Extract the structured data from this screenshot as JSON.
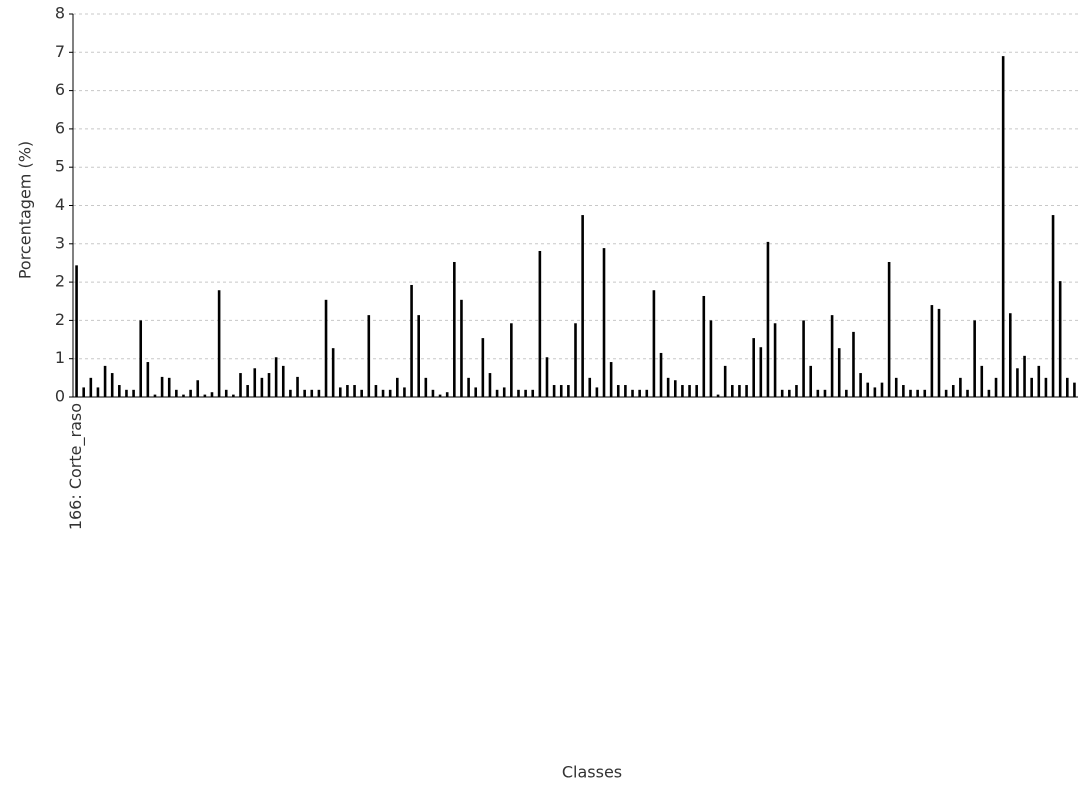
{
  "chart_data": {
    "type": "bar",
    "y_label": "Porcentagem (%)",
    "x_label": "Classes",
    "color": "#000000",
    "grid": true,
    "ylim": [
      0,
      8
    ],
    "yticks": [
      {
        "value": 0,
        "label": "0"
      },
      {
        "value": 0.8,
        "label": "1"
      },
      {
        "value": 1.6,
        "label": "2"
      },
      {
        "value": 2.4,
        "label": "2"
      },
      {
        "value": 3.2,
        "label": "3"
      },
      {
        "value": 4,
        "label": "4"
      },
      {
        "value": 4.8,
        "label": "5"
      },
      {
        "value": 5.6,
        "label": "6"
      },
      {
        "value": 6.4,
        "label": "6"
      },
      {
        "value": 7.2,
        "label": "7"
      },
      {
        "value": 8,
        "label": "8"
      }
    ],
    "categories": [
      "166: Corte_raso",
      null,
      null,
      null,
      null,
      null,
      null,
      null,
      null,
      null,
      null,
      null,
      null,
      null,
      null,
      null,
      null,
      null,
      null,
      null,
      null,
      null,
      null,
      null,
      null,
      null,
      null,
      null,
      null,
      null,
      null,
      null,
      null,
      null,
      null,
      null,
      null,
      null,
      null,
      null,
      null,
      null,
      null,
      null,
      null,
      null,
      null,
      null,
      null,
      null,
      null,
      null,
      null,
      null,
      null,
      null,
      null,
      null,
      null,
      null,
      null,
      null,
      null,
      null,
      null,
      null,
      null,
      null,
      null,
      null,
      null,
      null,
      null,
      null,
      null,
      null,
      null,
      null,
      null,
      null,
      null,
      null,
      null,
      null,
      null,
      null,
      null,
      null,
      null,
      null,
      null,
      null,
      null,
      null,
      null,
      null,
      null,
      null,
      null,
      null,
      null,
      null,
      null,
      null,
      null,
      null,
      null,
      null,
      null,
      null,
      null,
      null,
      null,
      null,
      null,
      null,
      null,
      null,
      null,
      null,
      null,
      null,
      null,
      null,
      null,
      null,
      null,
      null,
      null,
      null,
      null,
      null,
      null,
      null,
      null,
      null,
      null,
      null,
      null,
      null,
      null
    ],
    "values": [
      2.75,
      0.2,
      0.4,
      0.2,
      0.65,
      0.5,
      0.25,
      0.15,
      0.15,
      1.6,
      0.73,
      0.05,
      0.42,
      0.4,
      0.15,
      0.05,
      0.15,
      0.35,
      0.05,
      0.1,
      2.23,
      0.15,
      0.05,
      0.5,
      0.25,
      0.6,
      0.4,
      0.5,
      0.83,
      0.65,
      0.15,
      0.42,
      0.15,
      0.15,
      0.15,
      2.03,
      1.02,
      0.2,
      0.25,
      0.25,
      0.15,
      1.71,
      0.25,
      0.15,
      0.15,
      0.4,
      0.2,
      2.34,
      1.71,
      0.4,
      0.15,
      0.05,
      0.1,
      2.82,
      2.03,
      0.4,
      0.2,
      1.23,
      0.5,
      0.15,
      0.2,
      1.54,
      0.15,
      0.15,
      0.15,
      3.05,
      0.83,
      0.25,
      0.25,
      0.25,
      1.54,
      3.8,
      0.4,
      0.2,
      3.11,
      0.73,
      0.25,
      0.25,
      0.15,
      0.15,
      0.15,
      2.23,
      0.92,
      0.4,
      0.35,
      0.25,
      0.25,
      0.25,
      2.11,
      1.6,
      0.05,
      0.65,
      0.25,
      0.25,
      0.25,
      1.23,
      1.04,
      3.24,
      1.54,
      0.15,
      0.15,
      0.25,
      1.6,
      0.65,
      0.15,
      0.15,
      1.71,
      1.02,
      0.15,
      1.36,
      0.5,
      0.3,
      0.2,
      0.3,
      2.82,
      0.4,
      0.25,
      0.15,
      0.15,
      0.15,
      1.92,
      1.84,
      0.15,
      0.25,
      0.4,
      0.15,
      1.6,
      0.65,
      0.15,
      0.4,
      7.12,
      1.75,
      0.6,
      0.86,
      0.4,
      0.65,
      0.4,
      3.8,
      2.42,
      0.4,
      0.3
    ]
  }
}
